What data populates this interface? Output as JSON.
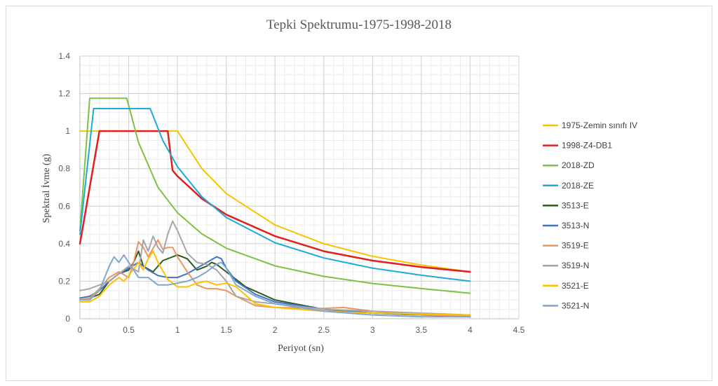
{
  "chart_data": {
    "type": "line",
    "title": "Tepki Spektrumu-1975-1998-2018",
    "xlabel": "Periyot (sn)",
    "ylabel": "Spektral İvme (g)",
    "xlim": [
      0,
      4.5
    ],
    "ylim": [
      0,
      1.4
    ],
    "x_ticks": [
      "0",
      "0.5",
      "1",
      "1.5",
      "2",
      "2.5",
      "3",
      "3.5",
      "4",
      "4.5"
    ],
    "y_ticks": [
      "0",
      "0.2",
      "0.4",
      "0.6",
      "0.8",
      "1",
      "1.2",
      "1.4"
    ],
    "grid": true,
    "legend_position": "right",
    "series": [
      {
        "name": "1975-Zemin sınıfı IV",
        "color": "#f5c400",
        "width": 2,
        "points": [
          [
            0,
            1.0
          ],
          [
            1.0,
            1.0
          ],
          [
            1.25,
            0.8
          ],
          [
            1.5,
            0.667
          ],
          [
            2.0,
            0.5
          ],
          [
            2.5,
            0.4
          ],
          [
            3.0,
            0.333
          ],
          [
            3.5,
            0.286
          ],
          [
            4.0,
            0.25
          ]
        ]
      },
      {
        "name": "1998-Z4-DB1",
        "color": "#e02020",
        "width": 2.5,
        "points": [
          [
            0,
            0.4
          ],
          [
            0.2,
            1.0
          ],
          [
            0.9,
            1.0
          ],
          [
            0.95,
            0.79
          ],
          [
            1.0,
            0.76
          ],
          [
            1.25,
            0.64
          ],
          [
            1.5,
            0.555
          ],
          [
            2.0,
            0.44
          ],
          [
            2.5,
            0.36
          ],
          [
            3.0,
            0.31
          ],
          [
            3.5,
            0.275
          ],
          [
            4.0,
            0.25
          ]
        ]
      },
      {
        "name": "2018-ZD",
        "color": "#7cc243",
        "width": 2,
        "points": [
          [
            0,
            0.47
          ],
          [
            0.1,
            1.175
          ],
          [
            0.48,
            1.175
          ],
          [
            0.6,
            0.94
          ],
          [
            0.8,
            0.7
          ],
          [
            1.0,
            0.565
          ],
          [
            1.25,
            0.452
          ],
          [
            1.5,
            0.376
          ],
          [
            2.0,
            0.282
          ],
          [
            2.5,
            0.226
          ],
          [
            3.0,
            0.188
          ],
          [
            3.5,
            0.161
          ],
          [
            4.0,
            0.136
          ]
        ]
      },
      {
        "name": "2018-ZE",
        "color": "#1eaadc",
        "width": 2,
        "points": [
          [
            0,
            0.45
          ],
          [
            0.14,
            1.12
          ],
          [
            0.72,
            1.12
          ],
          [
            0.85,
            0.95
          ],
          [
            1.0,
            0.81
          ],
          [
            1.25,
            0.65
          ],
          [
            1.5,
            0.54
          ],
          [
            2.0,
            0.405
          ],
          [
            2.5,
            0.324
          ],
          [
            3.0,
            0.27
          ],
          [
            3.5,
            0.232
          ],
          [
            4.0,
            0.2
          ]
        ]
      },
      {
        "name": "3513-E",
        "color": "#2d5a1e",
        "width": 2,
        "points": [
          [
            0,
            0.1
          ],
          [
            0.1,
            0.11
          ],
          [
            0.2,
            0.13
          ],
          [
            0.3,
            0.2
          ],
          [
            0.4,
            0.24
          ],
          [
            0.5,
            0.26
          ],
          [
            0.55,
            0.3
          ],
          [
            0.6,
            0.36
          ],
          [
            0.65,
            0.28
          ],
          [
            0.75,
            0.25
          ],
          [
            0.85,
            0.31
          ],
          [
            1.0,
            0.34
          ],
          [
            1.1,
            0.32
          ],
          [
            1.2,
            0.26
          ],
          [
            1.3,
            0.28
          ],
          [
            1.35,
            0.3
          ],
          [
            1.4,
            0.29
          ],
          [
            1.5,
            0.25
          ],
          [
            1.7,
            0.17
          ],
          [
            2.0,
            0.1
          ],
          [
            2.5,
            0.05
          ],
          [
            3.0,
            0.03
          ],
          [
            3.5,
            0.02
          ],
          [
            4.0,
            0.015
          ]
        ]
      },
      {
        "name": "3513-N",
        "color": "#4472c4",
        "width": 2,
        "points": [
          [
            0,
            0.11
          ],
          [
            0.1,
            0.12
          ],
          [
            0.2,
            0.15
          ],
          [
            0.3,
            0.2
          ],
          [
            0.4,
            0.24
          ],
          [
            0.5,
            0.27
          ],
          [
            0.6,
            0.3
          ],
          [
            0.7,
            0.26
          ],
          [
            0.8,
            0.23
          ],
          [
            0.9,
            0.22
          ],
          [
            1.0,
            0.22
          ],
          [
            1.1,
            0.24
          ],
          [
            1.2,
            0.27
          ],
          [
            1.3,
            0.3
          ],
          [
            1.4,
            0.33
          ],
          [
            1.45,
            0.32
          ],
          [
            1.5,
            0.27
          ],
          [
            1.6,
            0.2
          ],
          [
            1.8,
            0.13
          ],
          [
            2.0,
            0.09
          ],
          [
            2.5,
            0.05
          ],
          [
            3.0,
            0.03
          ],
          [
            3.5,
            0.02
          ],
          [
            4.0,
            0.01
          ]
        ]
      },
      {
        "name": "3519-E",
        "color": "#e59866",
        "width": 2,
        "points": [
          [
            0,
            0.1
          ],
          [
            0.1,
            0.11
          ],
          [
            0.2,
            0.16
          ],
          [
            0.3,
            0.22
          ],
          [
            0.4,
            0.25
          ],
          [
            0.5,
            0.22
          ],
          [
            0.55,
            0.3
          ],
          [
            0.6,
            0.41
          ],
          [
            0.65,
            0.38
          ],
          [
            0.7,
            0.33
          ],
          [
            0.8,
            0.42
          ],
          [
            0.85,
            0.37
          ],
          [
            0.9,
            0.38
          ],
          [
            0.95,
            0.38
          ],
          [
            1.0,
            0.33
          ],
          [
            1.1,
            0.25
          ],
          [
            1.2,
            0.18
          ],
          [
            1.3,
            0.16
          ],
          [
            1.4,
            0.16
          ],
          [
            1.5,
            0.15
          ],
          [
            1.6,
            0.12
          ],
          [
            1.8,
            0.07
          ],
          [
            2.0,
            0.06
          ],
          [
            2.5,
            0.055
          ],
          [
            2.7,
            0.06
          ],
          [
            3.0,
            0.04
          ],
          [
            3.5,
            0.02
          ],
          [
            4.0,
            0.015
          ]
        ]
      },
      {
        "name": "3519-N",
        "color": "#a6a6a6",
        "width": 2,
        "points": [
          [
            0,
            0.15
          ],
          [
            0.1,
            0.16
          ],
          [
            0.2,
            0.18
          ],
          [
            0.3,
            0.2
          ],
          [
            0.4,
            0.24
          ],
          [
            0.5,
            0.28
          ],
          [
            0.6,
            0.25
          ],
          [
            0.65,
            0.42
          ],
          [
            0.7,
            0.36
          ],
          [
            0.75,
            0.44
          ],
          [
            0.8,
            0.38
          ],
          [
            0.85,
            0.35
          ],
          [
            0.9,
            0.45
          ],
          [
            0.95,
            0.52
          ],
          [
            1.0,
            0.47
          ],
          [
            1.1,
            0.35
          ],
          [
            1.2,
            0.3
          ],
          [
            1.3,
            0.29
          ],
          [
            1.4,
            0.26
          ],
          [
            1.5,
            0.2
          ],
          [
            1.6,
            0.12
          ],
          [
            1.8,
            0.09
          ],
          [
            2.0,
            0.08
          ],
          [
            2.5,
            0.05
          ],
          [
            3.0,
            0.04
          ],
          [
            3.5,
            0.03
          ],
          [
            4.0,
            0.02
          ]
        ]
      },
      {
        "name": "3521-E",
        "color": "#ffc000",
        "width": 2,
        "points": [
          [
            0,
            0.09
          ],
          [
            0.1,
            0.09
          ],
          [
            0.2,
            0.12
          ],
          [
            0.3,
            0.18
          ],
          [
            0.4,
            0.22
          ],
          [
            0.45,
            0.2
          ],
          [
            0.5,
            0.23
          ],
          [
            0.6,
            0.3
          ],
          [
            0.65,
            0.26
          ],
          [
            0.7,
            0.32
          ],
          [
            0.75,
            0.36
          ],
          [
            0.8,
            0.3
          ],
          [
            0.9,
            0.21
          ],
          [
            1.0,
            0.17
          ],
          [
            1.1,
            0.17
          ],
          [
            1.2,
            0.19
          ],
          [
            1.3,
            0.2
          ],
          [
            1.4,
            0.18
          ],
          [
            1.5,
            0.19
          ],
          [
            1.6,
            0.17
          ],
          [
            1.8,
            0.08
          ],
          [
            2.0,
            0.06
          ],
          [
            2.5,
            0.04
          ],
          [
            3.0,
            0.03
          ],
          [
            3.5,
            0.025
          ],
          [
            4.0,
            0.02
          ]
        ]
      },
      {
        "name": "3521-N",
        "color": "#7fa7d1",
        "width": 2,
        "points": [
          [
            0,
            0.1
          ],
          [
            0.1,
            0.1
          ],
          [
            0.2,
            0.15
          ],
          [
            0.3,
            0.28
          ],
          [
            0.35,
            0.33
          ],
          [
            0.4,
            0.3
          ],
          [
            0.45,
            0.34
          ],
          [
            0.5,
            0.3
          ],
          [
            0.6,
            0.22
          ],
          [
            0.7,
            0.22
          ],
          [
            0.8,
            0.18
          ],
          [
            0.9,
            0.18
          ],
          [
            1.0,
            0.19
          ],
          [
            1.1,
            0.2
          ],
          [
            1.2,
            0.22
          ],
          [
            1.3,
            0.25
          ],
          [
            1.4,
            0.29
          ],
          [
            1.45,
            0.3
          ],
          [
            1.5,
            0.27
          ],
          [
            1.6,
            0.18
          ],
          [
            1.8,
            0.12
          ],
          [
            2.0,
            0.08
          ],
          [
            2.5,
            0.04
          ],
          [
            3.0,
            0.02
          ],
          [
            3.5,
            0.01
          ],
          [
            4.0,
            0.01
          ]
        ]
      }
    ]
  }
}
